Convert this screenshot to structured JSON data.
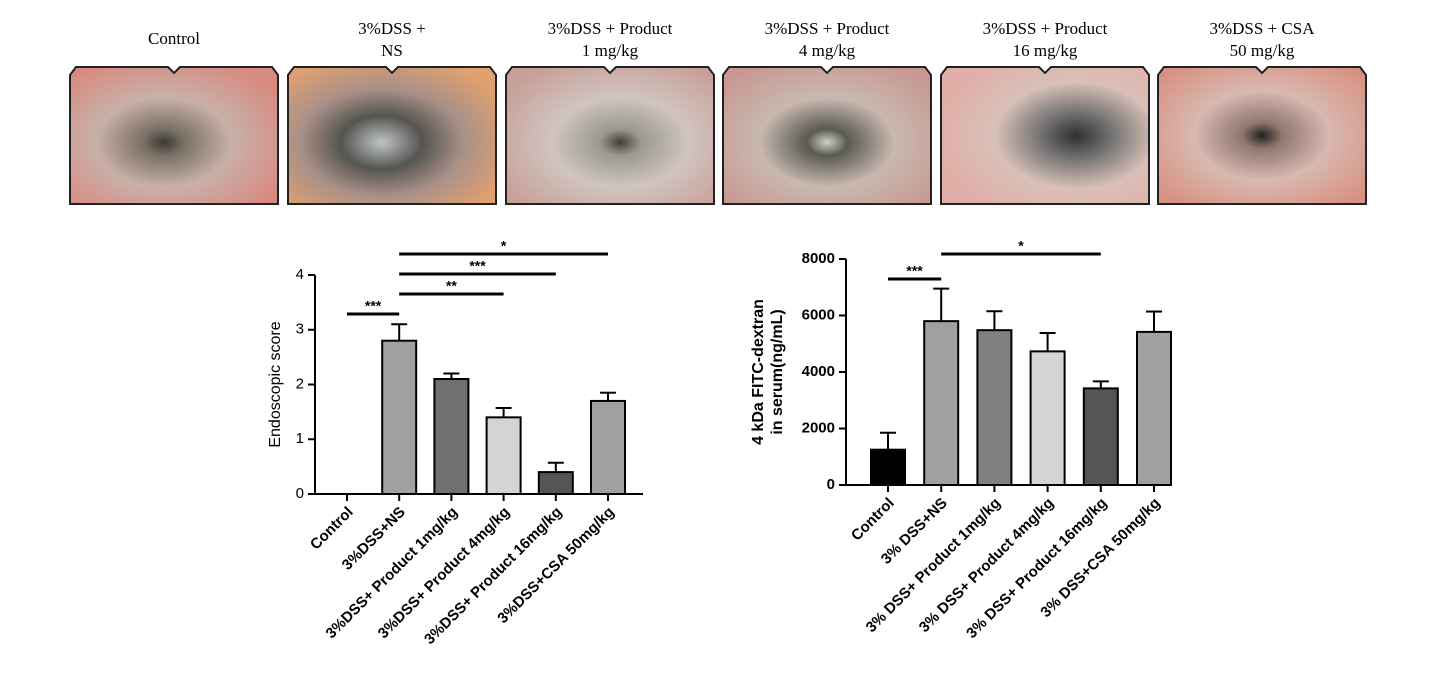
{
  "images": [
    {
      "caption": [
        "Control"
      ]
    },
    {
      "caption": [
        "3%DSS +",
        "NS"
      ]
    },
    {
      "caption": [
        "3%DSS + Product",
        "1 mg/kg"
      ]
    },
    {
      "caption": [
        "3%DSS + Product",
        "4 mg/kg"
      ]
    },
    {
      "caption": [
        "3%DSS + Product",
        "16 mg/kg"
      ]
    },
    {
      "caption": [
        "3%DSS + CSA",
        "50 mg/kg"
      ]
    }
  ],
  "chart_data": [
    {
      "type": "bar",
      "y_label": [
        "Endoscopic score"
      ],
      "categories": [
        "Control",
        "3%DSS+NS",
        "3%DSS+ Product 1mg/kg",
        "3%DSS+ Product 4mg/kg",
        "3%DSS+ Product 16mg/kg",
        "3%DSS+CSA 50mg/kg"
      ],
      "values": [
        0,
        2.8,
        2.1,
        1.4,
        0.4,
        1.7
      ],
      "errors": [
        0,
        0.3,
        0.1,
        0.17,
        0.17,
        0.15
      ],
      "colors": [
        "#ffffff",
        "#a0a0a0",
        "#707070",
        "#d4d4d4",
        "#555555",
        "#a0a0a0"
      ],
      "ylim": [
        0,
        4
      ],
      "yticks": [
        0,
        1,
        2,
        3,
        4
      ],
      "comparisons": [
        {
          "from": 0,
          "to": 1,
          "label": "***"
        },
        {
          "from": 1,
          "to": 3,
          "label": "**"
        },
        {
          "from": 1,
          "to": 4,
          "label": "***"
        },
        {
          "from": 1,
          "to": 5,
          "label": "*"
        }
      ]
    },
    {
      "type": "bar",
      "y_label": [
        "4 kDa FITC-dextran",
        "in serum(ng/mL)"
      ],
      "categories": [
        "Control",
        "3% DSS+NS",
        "3% DSS+ Product 1mg/kg",
        "3% DSS+ Product 4mg/kg",
        "3% DSS+ Product 16mg/kg",
        "3% DSS+CSA 50mg/kg"
      ],
      "values": [
        1250,
        5800,
        5480,
        4730,
        3420,
        5420
      ],
      "errors": [
        600,
        1150,
        670,
        650,
        250,
        720
      ],
      "colors": [
        "#000000",
        "#a0a0a0",
        "#808080",
        "#d4d4d4",
        "#555555",
        "#a0a0a0"
      ],
      "ylim": [
        0,
        8000
      ],
      "yticks": [
        0,
        2000,
        4000,
        6000,
        8000
      ],
      "comparisons": [
        {
          "from": 0,
          "to": 1,
          "label": "***"
        },
        {
          "from": 1,
          "to": 4,
          "label": "*"
        }
      ]
    }
  ]
}
